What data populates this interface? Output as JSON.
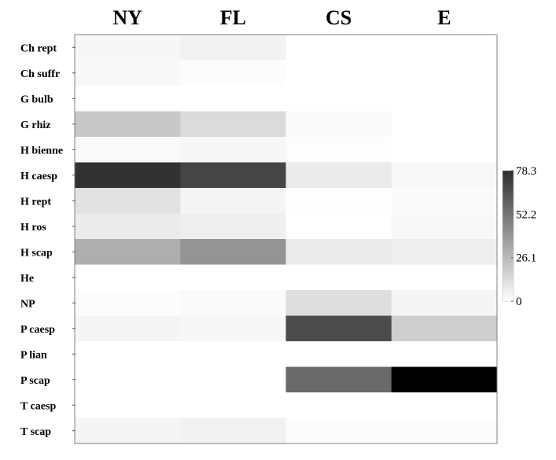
{
  "chart_data": {
    "type": "heatmap",
    "columns": [
      "NY",
      "FL",
      "CS",
      "E"
    ],
    "rows": [
      "Ch rept",
      "Ch suffr",
      "G bulb",
      "G rhiz",
      "H bienne",
      "H caesp",
      "H rept",
      "H ros",
      "H scap",
      "He",
      "NP",
      "P caesp",
      "P lian",
      "P scap",
      "T caesp",
      "T scap"
    ],
    "values": [
      [
        2.5,
        4.0,
        0.0,
        0.0
      ],
      [
        2.0,
        1.0,
        0.0,
        0.0
      ],
      [
        0.0,
        0.0,
        0.0,
        0.0
      ],
      [
        17.0,
        11.0,
        1.5,
        0.0
      ],
      [
        1.5,
        2.5,
        0.5,
        0.0
      ],
      [
        63.0,
        57.0,
        6.0,
        2.0
      ],
      [
        9.0,
        3.0,
        0.5,
        1.5
      ],
      [
        6.0,
        5.0,
        0.0,
        2.0
      ],
      [
        25.0,
        33.0,
        6.0,
        5.0
      ],
      [
        0.0,
        0.0,
        0.0,
        0.0
      ],
      [
        1.0,
        1.5,
        10.0,
        3.0
      ],
      [
        3.0,
        2.5,
        55.0,
        15.0
      ],
      [
        0.0,
        0.0,
        0.0,
        0.0
      ],
      [
        0.0,
        0.0,
        46.0,
        78.3
      ],
      [
        0.0,
        0.0,
        0.0,
        0.0
      ],
      [
        3.0,
        4.0,
        1.0,
        1.0
      ]
    ],
    "colorbar": {
      "min": 0,
      "max": 78.3,
      "ticks": [
        "78.3",
        "52.2",
        "26.1",
        "0"
      ],
      "tick_values": [
        78.3,
        52.2,
        26.1,
        0
      ],
      "color_low": "#ffffff",
      "color_high": "#000000"
    }
  }
}
